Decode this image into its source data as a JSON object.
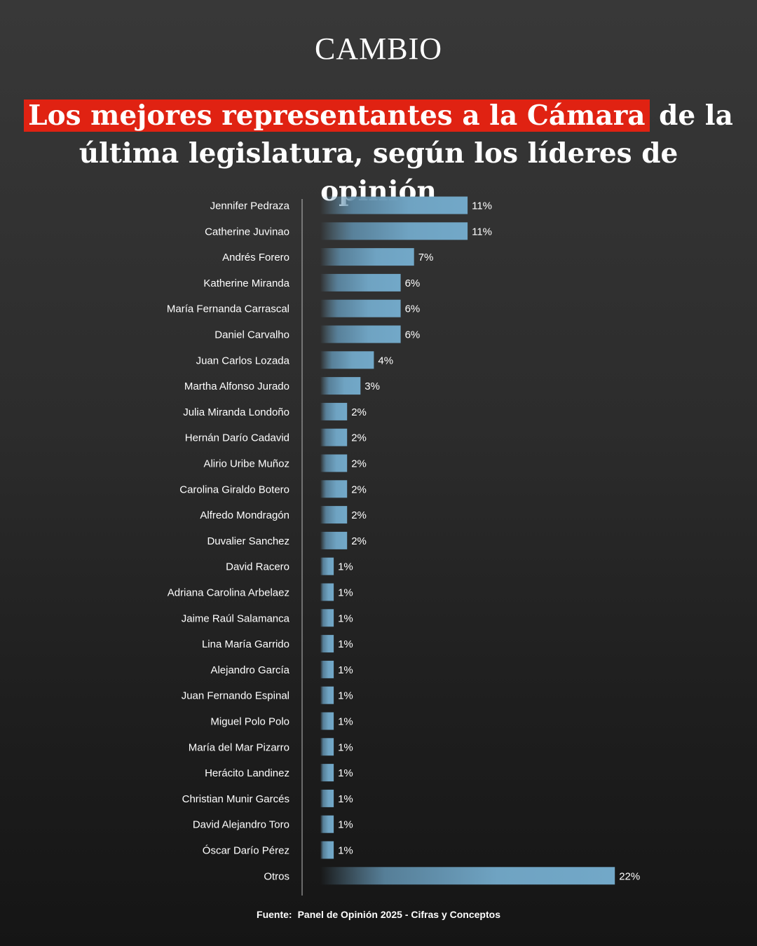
{
  "brand": "CAMBIO",
  "headline": {
    "highlighted": "Los mejores representantes a la Cámara",
    "rest_line1": " de la",
    "line2": "última legislatura, según los líderes de opinión"
  },
  "source": {
    "label": "Fuente:",
    "text": "Panel de Opinión 2025 - Cifras y Conceptos"
  },
  "colors": {
    "background": "#2e2e2e",
    "highlight": "#e02212",
    "bar": "#6fa3c2",
    "text": "#ffffff"
  },
  "chart_data": {
    "type": "bar",
    "orientation": "horizontal",
    "title": "",
    "xlabel": "",
    "ylabel": "",
    "xlim": [
      0,
      22
    ],
    "value_suffix": "%",
    "categories": [
      "Jennifer Pedraza",
      "Catherine Juvinao",
      "Andrés Forero",
      "Katherine Miranda",
      "María Fernanda Carrascal",
      "Daniel Carvalho",
      "Juan Carlos Lozada",
      "Martha Alfonso Jurado",
      "Julia Miranda Londoño",
      "Hernán Darío Cadavid",
      "Alirio Uribe Muñoz",
      "Carolina Giraldo Botero",
      "Alfredo Mondragón",
      "Duvalier Sanchez",
      "David Racero",
      "Adriana Carolina Arbelaez",
      "Jaime Raúl Salamanca",
      "Lina María Garrido",
      "Alejandro García",
      "Juan Fernando Espinal",
      "Miguel Polo Polo",
      "María del Mar Pizarro",
      "Herácito Landinez",
      "Christian Munir Garcés",
      "David Alejandro Toro",
      "Óscar Darío Pérez",
      "Otros"
    ],
    "values": [
      11,
      11,
      7,
      6,
      6,
      6,
      4,
      3,
      2,
      2,
      2,
      2,
      2,
      2,
      1,
      1,
      1,
      1,
      1,
      1,
      1,
      1,
      1,
      1,
      1,
      1,
      22
    ],
    "labels": [
      "11%",
      "11%",
      "7%",
      "6%",
      "6%",
      "6%",
      "4%",
      "3%",
      "2%",
      "2%",
      "2%",
      "2%",
      "2%",
      "2%",
      "1%",
      "1%",
      "1%",
      "1%",
      "1%",
      "1%",
      "1%",
      "1%",
      "1%",
      "1%",
      "1%",
      "1%",
      "22%"
    ],
    "grid": false,
    "legend": "none"
  }
}
